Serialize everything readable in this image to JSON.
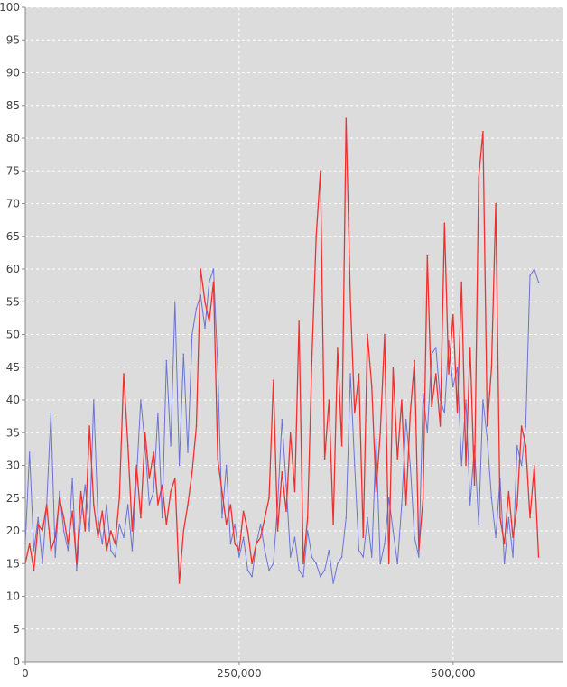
{
  "chart_data": {
    "type": "line",
    "title": "",
    "xlabel": "",
    "ylabel": "",
    "xlim": [
      0,
      629000
    ],
    "ylim": [
      0,
      100
    ],
    "grid": true,
    "legend": "none",
    "x_ticks": [
      {
        "value": 0,
        "label": "0"
      },
      {
        "value": 250000,
        "label": "250,000"
      },
      {
        "value": 500000,
        "label": "500,000"
      }
    ],
    "y_ticks": [
      {
        "value": 0,
        "label": "0"
      },
      {
        "value": 5,
        "label": "5"
      },
      {
        "value": 10,
        "label": "10"
      },
      {
        "value": 15,
        "label": "15"
      },
      {
        "value": 20,
        "label": "20"
      },
      {
        "value": 25,
        "label": "25"
      },
      {
        "value": 30,
        "label": "30"
      },
      {
        "value": 35,
        "label": "35"
      },
      {
        "value": 40,
        "label": "40"
      },
      {
        "value": 45,
        "label": "45"
      },
      {
        "value": 50,
        "label": "50"
      },
      {
        "value": 55,
        "label": "55"
      },
      {
        "value": 60,
        "label": "60"
      },
      {
        "value": 65,
        "label": "65"
      },
      {
        "value": 70,
        "label": "70"
      },
      {
        "value": 75,
        "label": "75"
      },
      {
        "value": 80,
        "label": "80"
      },
      {
        "value": 85,
        "label": "85"
      },
      {
        "value": 90,
        "label": "90"
      },
      {
        "value": 95,
        "label": "95"
      },
      {
        "value": 100,
        "label": "100"
      }
    ],
    "colors": {
      "plot_background": "#dcdcdc",
      "gridline": "#ffffff",
      "blue": "#6b73d6",
      "red": "#f03030"
    },
    "series": [
      {
        "color": "#6b73d6",
        "x": [
          0,
          5000,
          10000,
          15000,
          20000,
          25000,
          30000,
          35000,
          40000,
          45000,
          50000,
          55000,
          60000,
          65000,
          70000,
          75000,
          80000,
          85000,
          90000,
          95000,
          100000,
          105000,
          110000,
          115000,
          120000,
          125000,
          130000,
          135000,
          140000,
          145000,
          150000,
          155000,
          160000,
          165000,
          170000,
          175000,
          180000,
          185000,
          190000,
          195000,
          200000,
          205000,
          210000,
          215000,
          220000,
          225000,
          230000,
          235000,
          240000,
          245000,
          250000,
          255000,
          260000,
          265000,
          270000,
          275000,
          280000,
          285000,
          290000,
          295000,
          300000,
          305000,
          310000,
          315000,
          320000,
          325000,
          330000,
          335000,
          340000,
          345000,
          350000,
          355000,
          360000,
          365000,
          370000,
          375000,
          380000,
          385000,
          390000,
          395000,
          400000,
          405000,
          410000,
          415000,
          420000,
          425000,
          430000,
          435000,
          440000,
          445000,
          450000,
          455000,
          460000,
          465000,
          470000,
          475000,
          480000,
          485000,
          490000,
          495000,
          500000,
          505000,
          510000,
          515000,
          520000,
          525000,
          530000,
          535000,
          540000,
          545000,
          550000,
          555000,
          560000,
          565000,
          570000,
          575000,
          580000,
          585000,
          590000,
          595000,
          600000
        ],
        "y": [
          18,
          32,
          17,
          22,
          15,
          24,
          38,
          16,
          26,
          20,
          17,
          28,
          14,
          22,
          27,
          20,
          40,
          22,
          18,
          24,
          17,
          16,
          21,
          19,
          24,
          17,
          28,
          40,
          33,
          24,
          26,
          38,
          22,
          46,
          33,
          55,
          30,
          47,
          32,
          50,
          54,
          56,
          51,
          58,
          60,
          45,
          22,
          30,
          18,
          21,
          16,
          19,
          14,
          13,
          18,
          21,
          17,
          14,
          15,
          24,
          37,
          27,
          16,
          19,
          14,
          13,
          20,
          16,
          15,
          13,
          14,
          17,
          12,
          15,
          16,
          22,
          44,
          30,
          17,
          16,
          22,
          16,
          34,
          15,
          18,
          25,
          20,
          15,
          24,
          37,
          30,
          19,
          16,
          41,
          35,
          47,
          48,
          40,
          38,
          49,
          42,
          45,
          30,
          40,
          24,
          33,
          21,
          40,
          34,
          25,
          19,
          28,
          15,
          22,
          16,
          33,
          30,
          36,
          59,
          60,
          58
        ]
      },
      {
        "color": "#f03030",
        "x": [
          0,
          5000,
          10000,
          15000,
          20000,
          25000,
          30000,
          35000,
          40000,
          45000,
          50000,
          55000,
          60000,
          65000,
          70000,
          75000,
          80000,
          85000,
          90000,
          95000,
          100000,
          105000,
          110000,
          115000,
          120000,
          125000,
          130000,
          135000,
          140000,
          145000,
          150000,
          155000,
          160000,
          165000,
          170000,
          175000,
          180000,
          185000,
          190000,
          195000,
          200000,
          205000,
          210000,
          215000,
          220000,
          225000,
          230000,
          235000,
          240000,
          245000,
          250000,
          255000,
          260000,
          265000,
          270000,
          275000,
          280000,
          285000,
          290000,
          295000,
          300000,
          305000,
          310000,
          315000,
          320000,
          325000,
          330000,
          335000,
          340000,
          345000,
          350000,
          355000,
          360000,
          365000,
          370000,
          375000,
          380000,
          385000,
          390000,
          395000,
          400000,
          405000,
          410000,
          415000,
          420000,
          425000,
          430000,
          435000,
          440000,
          445000,
          450000,
          455000,
          460000,
          465000,
          470000,
          475000,
          480000,
          485000,
          490000,
          495000,
          500000,
          505000,
          510000,
          515000,
          520000,
          525000,
          530000,
          535000,
          540000,
          545000,
          550000,
          555000,
          560000,
          565000,
          570000,
          575000,
          580000,
          585000,
          590000,
          595000,
          600000
        ],
        "y": [
          15,
          18,
          14,
          21,
          20,
          24,
          17,
          19,
          25,
          22,
          18,
          23,
          15,
          26,
          20,
          36,
          24,
          19,
          23,
          17,
          20,
          18,
          25,
          44,
          33,
          20,
          30,
          22,
          35,
          28,
          32,
          24,
          27,
          21,
          26,
          28,
          12,
          20,
          24,
          29,
          36,
          60,
          55,
          52,
          58,
          31,
          26,
          21,
          24,
          18,
          17,
          23,
          20,
          15,
          18,
          19,
          22,
          25,
          43,
          20,
          29,
          23,
          35,
          26,
          52,
          15,
          22,
          46,
          65,
          75,
          31,
          40,
          21,
          48,
          33,
          83,
          55,
          38,
          44,
          19,
          50,
          42,
          26,
          35,
          50,
          15,
          45,
          31,
          40,
          24,
          38,
          46,
          17,
          25,
          62,
          39,
          44,
          36,
          67,
          44,
          53,
          38,
          58,
          30,
          48,
          27,
          74,
          81,
          36,
          45,
          70,
          22,
          18,
          26,
          19,
          24,
          36,
          33,
          22,
          30,
          16
        ]
      }
    ]
  }
}
